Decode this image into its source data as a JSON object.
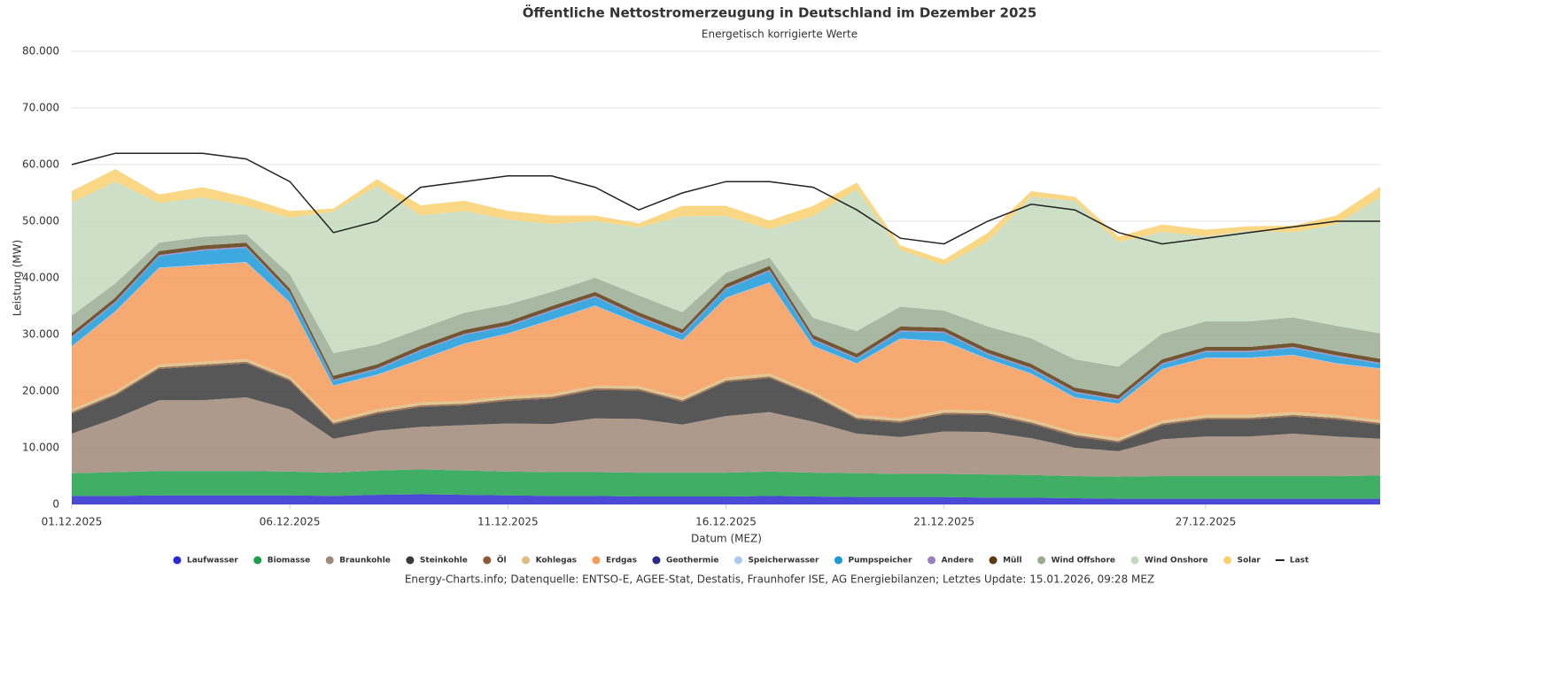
{
  "chart_data": {
    "type": "stacked-area",
    "title": "Öffentliche Nettostromerzeugung in Deutschland im Dezember 2025",
    "subtitle": "Energetisch korrigierte Werte",
    "y_label": "Leistung (MW)",
    "x_label": "Datum (MEZ)",
    "source": "Energy-Charts.info; Datenquelle: ENTSO-E, AGEE-Stat, Destatis, Fraunhofer ISE, AG Energiebilanzen; Letztes Update: 15.01.2026, 09:28 MEZ",
    "x": [
      "01.12.2025",
      "02.12.2025",
      "03.12.2025",
      "04.12.2025",
      "05.12.2025",
      "06.12.2025",
      "07.12.2025",
      "08.12.2025",
      "09.12.2025",
      "10.12.2025",
      "11.12.2025",
      "12.12.2025",
      "13.12.2025",
      "14.12.2025",
      "15.12.2025",
      "16.12.2025",
      "17.12.2025",
      "18.12.2025",
      "19.12.2025",
      "20.12.2025",
      "21.12.2025",
      "22.12.2025",
      "23.12.2025",
      "24.12.2025",
      "25.12.2025",
      "26.12.2025",
      "27.12.2025",
      "28.12.2025",
      "29.12.2025",
      "30.12.2025",
      "31.12.2025"
    ],
    "xticks": [
      "01.12.2025",
      "06.12.2025",
      "11.12.2025",
      "16.12.2025",
      "21.12.2025",
      "27.12.2025"
    ],
    "ylim": [
      0,
      80000
    ],
    "yticks": [
      0,
      {
        "value": 10000,
        "label": "10.000"
      },
      {
        "value": 20000,
        "label": "20.000"
      },
      {
        "value": 30000,
        "label": "30.000"
      },
      {
        "value": 40000,
        "label": "40.000"
      },
      {
        "value": 50000,
        "label": "50.000"
      },
      {
        "value": 60000,
        "label": "60.000"
      },
      {
        "value": 70000,
        "label": "70.000"
      },
      {
        "value": 80000,
        "label": "80.000"
      }
    ],
    "grid": true,
    "series": [
      {
        "name": "Laufwasser",
        "color": "#2a2ad0",
        "values": [
          1500,
          1500,
          1600,
          1600,
          1600,
          1600,
          1500,
          1700,
          1800,
          1700,
          1600,
          1500,
          1500,
          1400,
          1400,
          1400,
          1500,
          1400,
          1300,
          1300,
          1300,
          1200,
          1200,
          1100,
          1000,
          1000,
          1000,
          1000,
          1000,
          1000,
          1000
        ]
      },
      {
        "name": "Biomasse",
        "color": "#1ea04a",
        "values": [
          4000,
          4200,
          4300,
          4300,
          4300,
          4200,
          4100,
          4300,
          4400,
          4300,
          4200,
          4200,
          4200,
          4200,
          4200,
          4200,
          4300,
          4200,
          4200,
          4100,
          4100,
          4100,
          4000,
          3900,
          3900,
          4000,
          4000,
          4000,
          4000,
          4000,
          4100
        ]
      },
      {
        "name": "Braunkohle",
        "color": "#a08878",
        "values": [
          7000,
          9500,
          12500,
          12500,
          13000,
          11000,
          6000,
          7000,
          7500,
          8000,
          8500,
          8500,
          9500,
          9500,
          8500,
          10000,
          10500,
          9000,
          7000,
          6500,
          7500,
          7500,
          6500,
          5000,
          4500,
          6500,
          7000,
          7000,
          7500,
          7000,
          6500
        ]
      },
      {
        "name": "Steinkohle",
        "color": "#3a3a3a",
        "values": [
          3500,
          4000,
          5500,
          6000,
          6000,
          5000,
          2500,
          3000,
          3500,
          3500,
          4000,
          4500,
          5000,
          5000,
          4000,
          6000,
          6000,
          4500,
          2500,
          2500,
          3000,
          3000,
          2500,
          2000,
          1500,
          2500,
          3000,
          3000,
          3000,
          3000,
          2500
        ]
      },
      {
        "name": "Öl",
        "color": "#8a5a3a",
        "values": [
          300,
          300,
          300,
          300,
          300,
          300,
          300,
          300,
          300,
          300,
          300,
          300,
          300,
          300,
          300,
          300,
          300,
          300,
          300,
          300,
          300,
          300,
          300,
          300,
          300,
          300,
          300,
          300,
          300,
          300,
          300
        ]
      },
      {
        "name": "Kohlegas",
        "color": "#dcbc80",
        "values": [
          500,
          500,
          500,
          500,
          500,
          500,
          500,
          500,
          500,
          500,
          500,
          500,
          500,
          500,
          500,
          500,
          500,
          500,
          500,
          500,
          500,
          500,
          500,
          500,
          500,
          500,
          500,
          500,
          500,
          500,
          500
        ]
      },
      {
        "name": "Erdgas",
        "color": "#f59a58",
        "values": [
          11000,
          14000,
          17000,
          17000,
          17000,
          13000,
          6000,
          6000,
          7500,
          10000,
          11000,
          13000,
          14000,
          11000,
          10000,
          14000,
          16000,
          8000,
          9000,
          14000,
          12000,
          9000,
          8000,
          6000,
          6000,
          9000,
          10000,
          10000,
          10000,
          9000,
          9000
        ]
      },
      {
        "name": "Geothermie",
        "color": "#2a2a8a",
        "values": [
          20,
          20,
          20,
          20,
          20,
          20,
          20,
          20,
          20,
          20,
          20,
          20,
          20,
          20,
          20,
          20,
          20,
          20,
          20,
          20,
          20,
          20,
          20,
          20,
          20,
          20,
          20,
          20,
          20,
          20,
          20
        ]
      },
      {
        "name": "Speicherwasser",
        "color": "#a8c8f0",
        "values": [
          100,
          100,
          100,
          100,
          100,
          100,
          100,
          100,
          100,
          100,
          100,
          100,
          100,
          100,
          100,
          100,
          100,
          100,
          100,
          100,
          100,
          100,
          100,
          100,
          100,
          100,
          100,
          100,
          100,
          100,
          100
        ]
      },
      {
        "name": "Pumpspeicher",
        "color": "#1c9ad8",
        "values": [
          1500,
          1500,
          2000,
          2500,
          2500,
          1500,
          800,
          900,
          1500,
          1500,
          1200,
          1500,
          1500,
          1000,
          1000,
          1500,
          2000,
          1000,
          800,
          1200,
          1500,
          800,
          800,
          800,
          600,
          800,
          1000,
          1000,
          1200,
          1200,
          800
        ]
      },
      {
        "name": "Andere",
        "color": "#9a80c0",
        "values": [
          200,
          200,
          200,
          200,
          200,
          200,
          200,
          200,
          200,
          200,
          200,
          200,
          200,
          200,
          200,
          200,
          200,
          200,
          200,
          200,
          200,
          200,
          200,
          200,
          200,
          200,
          200,
          200,
          200,
          200,
          200
        ]
      },
      {
        "name": "Müll",
        "color": "#5a3a10",
        "values": [
          700,
          700,
          700,
          700,
          700,
          700,
          700,
          700,
          700,
          700,
          700,
          700,
          700,
          700,
          700,
          700,
          700,
          700,
          700,
          700,
          700,
          700,
          700,
          700,
          700,
          700,
          700,
          700,
          700,
          700,
          700
        ]
      },
      {
        "name": "Wind Offshore",
        "color": "#9aab92",
        "values": [
          3000,
          2500,
          1500,
          1500,
          1500,
          2500,
          4000,
          3500,
          3000,
          3000,
          3000,
          2500,
          2500,
          3000,
          3000,
          2000,
          1500,
          3000,
          4000,
          3500,
          3000,
          4000,
          4500,
          5000,
          5000,
          4500,
          4500,
          4500,
          4500,
          4500,
          4500
        ]
      },
      {
        "name": "Wind Onshore",
        "color": "#c4d9bc",
        "values": [
          20000,
          18000,
          7000,
          7000,
          5000,
          10000,
          25000,
          28000,
          20000,
          18000,
          15000,
          12000,
          10000,
          12000,
          17000,
          10000,
          5000,
          18000,
          25000,
          10000,
          8000,
          15000,
          25000,
          28000,
          22000,
          18000,
          15000,
          16000,
          15000,
          18000,
          24000
        ]
      },
      {
        "name": "Solar",
        "color": "#f8d070",
        "values": [
          2000,
          2200,
          1500,
          1800,
          1500,
          1200,
          500,
          1200,
          1800,
          1800,
          1500,
          1500,
          1000,
          700,
          1800,
          1800,
          1500,
          1800,
          1200,
          800,
          1000,
          1500,
          1000,
          700,
          1000,
          1300,
          1200,
          800,
          1200,
          1500,
          1900
        ]
      },
      {
        "name": "Last",
        "color": "#222222",
        "type": "line",
        "values": [
          60000,
          62000,
          62000,
          62000,
          61000,
          57000,
          48000,
          50000,
          56000,
          57000,
          58000,
          58000,
          56000,
          52000,
          55000,
          57000,
          57000,
          56000,
          52000,
          47000,
          46000,
          50000,
          53000,
          52000,
          48000,
          46000,
          47000,
          48000,
          49000,
          50000,
          50000
        ]
      }
    ]
  }
}
